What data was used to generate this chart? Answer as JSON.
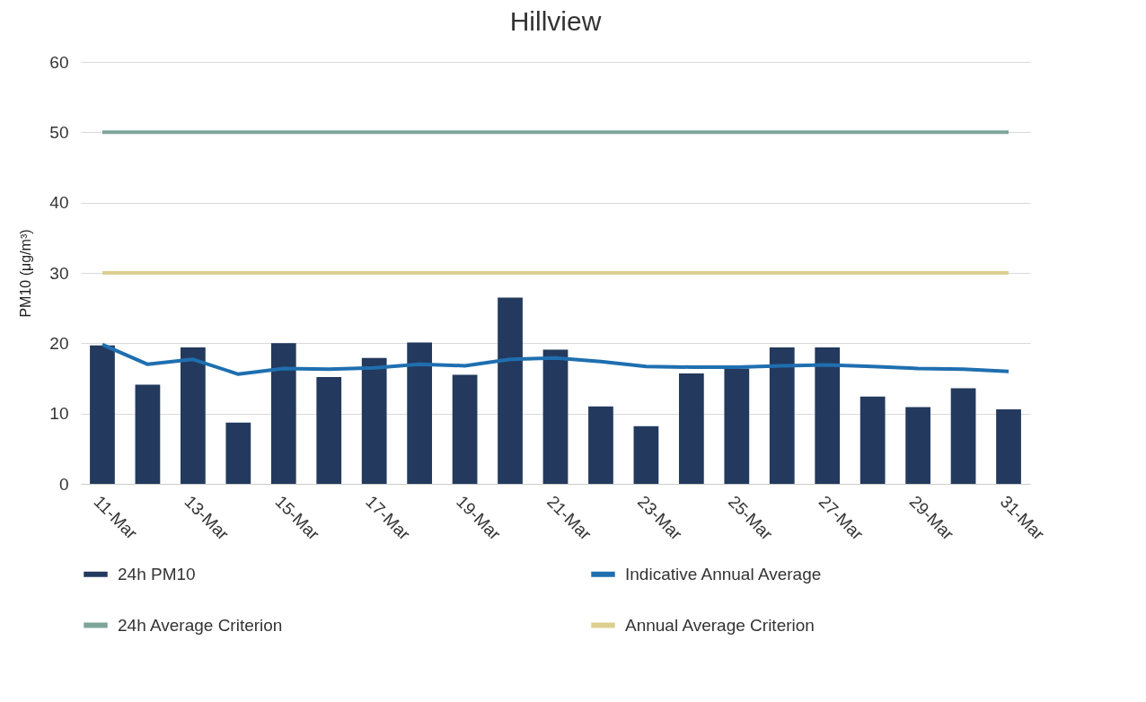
{
  "chart_data": {
    "type": "bar",
    "title": "Hillview",
    "ylabel": "PM10 (μg/m³)",
    "categories": [
      "11-Mar",
      null,
      "13-Mar",
      null,
      "15-Mar",
      null,
      "17-Mar",
      null,
      "19-Mar",
      null,
      "21-Mar",
      null,
      "23-Mar",
      null,
      "25-Mar",
      null,
      "27-Mar",
      null,
      "29-Mar",
      null,
      "31-Mar"
    ],
    "series": [
      {
        "name": "24h PM10",
        "color": "#233a5e",
        "values": [
          19.7,
          14.1,
          19.4,
          8.7,
          20.0,
          15.2,
          17.9,
          20.1,
          15.5,
          26.5,
          19.1,
          11.0,
          8.2,
          15.7,
          16.4,
          19.4,
          19.4,
          12.4,
          10.9,
          13.6,
          10.6
        ]
      },
      {
        "name": "Indicative Annual Average",
        "type": "line",
        "color": "#1f6fb0",
        "values": [
          19.8,
          17.0,
          17.7,
          15.6,
          16.4,
          16.3,
          16.5,
          17.0,
          16.8,
          17.7,
          17.9,
          17.4,
          16.7,
          16.6,
          16.6,
          16.8,
          16.9,
          16.7,
          16.4,
          16.3,
          16.0
        ]
      },
      {
        "name": "24h Average Criterion",
        "type": "line",
        "color": "#7ea59a",
        "values": [
          50,
          50,
          50,
          50,
          50,
          50,
          50,
          50,
          50,
          50,
          50,
          50,
          50,
          50,
          50,
          50,
          50,
          50,
          50,
          50,
          50
        ]
      },
      {
        "name": "Annual Average Criterion",
        "type": "line",
        "color": "#dccf8f",
        "values": [
          30,
          30,
          30,
          30,
          30,
          30,
          30,
          30,
          30,
          30,
          30,
          30,
          30,
          30,
          30,
          30,
          30,
          30,
          30,
          30,
          30
        ]
      }
    ],
    "ylim": [
      0,
      60
    ],
    "yticks": [
      0,
      10,
      20,
      30,
      40,
      50,
      60
    ],
    "grid": "y",
    "legend": "bottom"
  }
}
